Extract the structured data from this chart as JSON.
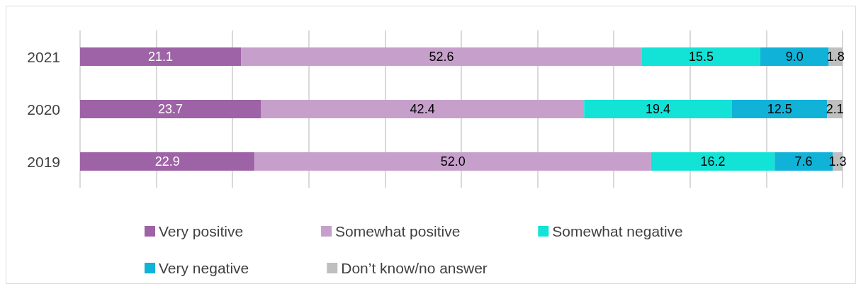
{
  "chart_data": {
    "type": "bar",
    "orientation": "horizontal",
    "stacked": true,
    "grid": "x",
    "legend": "bottom",
    "tick_labels": "y",
    "categories": [
      "2021",
      "2020",
      "2019"
    ],
    "xlim": [
      0,
      100
    ],
    "xticks": [
      {
        "value": 0,
        "label": null
      },
      {
        "value": 10,
        "label": null
      },
      {
        "value": 20,
        "label": null
      },
      {
        "value": 30,
        "label": null
      },
      {
        "value": 40,
        "label": null
      },
      {
        "value": 50,
        "label": null
      },
      {
        "value": 60,
        "label": null
      },
      {
        "value": 70,
        "label": null
      },
      {
        "value": 80,
        "label": null
      },
      {
        "value": 90,
        "label": null
      },
      {
        "value": 100,
        "label": null
      }
    ],
    "series": [
      {
        "name": "Very positive",
        "color": "#9e62a6",
        "values": [
          21.1,
          23.7,
          22.9
        ],
        "value_labels": [
          "21.1",
          "23.7",
          "22.9"
        ]
      },
      {
        "name": "Somewhat positive",
        "color": "#c6a0cb",
        "values": [
          52.6,
          42.4,
          52.0
        ],
        "value_labels": [
          "52.6",
          "42.4",
          "52.0"
        ]
      },
      {
        "name": "Somewhat negative",
        "color": "#12e3d6",
        "values": [
          15.5,
          19.4,
          16.2
        ],
        "value_labels": [
          "15.5",
          "19.4",
          "16.2"
        ]
      },
      {
        "name": "Very negative",
        "color": "#10b2d8",
        "values": [
          9.0,
          12.5,
          7.6
        ],
        "value_labels": [
          "9.0",
          "12.5",
          "7.6"
        ]
      },
      {
        "name": "Don’t know/no answer",
        "color": "#bfbfbf",
        "values": [
          1.8,
          2.1,
          1.3
        ],
        "value_labels": [
          "1.8",
          "2.1",
          "1.3"
        ]
      }
    ]
  }
}
